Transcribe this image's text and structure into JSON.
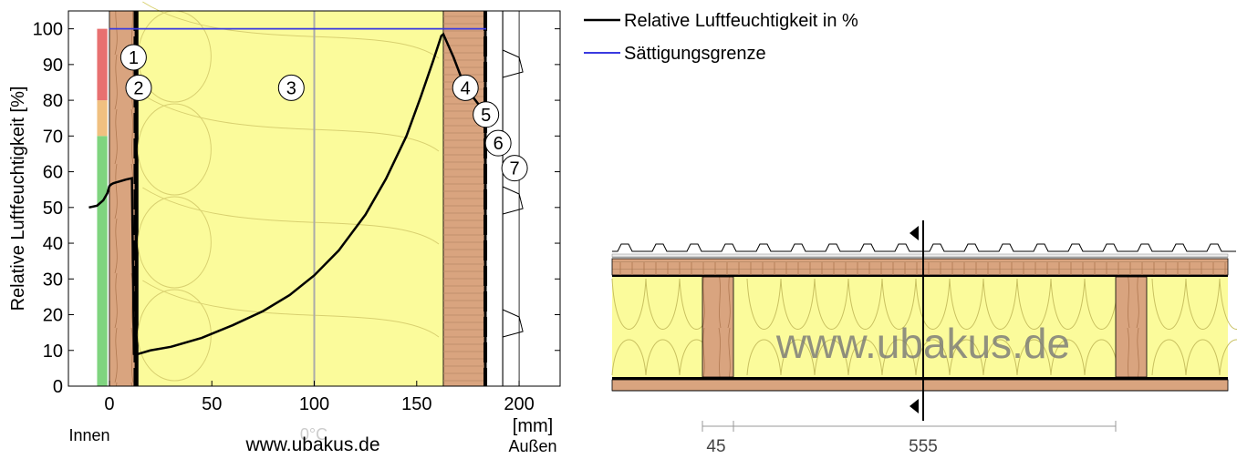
{
  "chart_data": {
    "type": "line",
    "ylabel": "Relative Luftfeuchtigkeit [%]",
    "xlabel": "[mm]",
    "xlim": [
      -20,
      220
    ],
    "ylim": [
      0,
      105
    ],
    "x_ticks": [
      0,
      50,
      100,
      150,
      200
    ],
    "y_ticks": [
      0,
      10,
      20,
      30,
      40,
      50,
      60,
      70,
      80,
      90,
      100
    ],
    "side_inner": "Innen",
    "side_outer": "Außen",
    "temperature_marker": "0°C",
    "watermark": "www.ubakus.de",
    "grid": true,
    "legend": [
      {
        "name": "Relative Luftfeuchtigkeit in %",
        "color": "#000000"
      },
      {
        "name": "Sättigungsgrenze",
        "color": "#3a3ae0"
      }
    ],
    "series": [
      {
        "name": "Relative Luftfeuchtigkeit in %",
        "color": "#000000",
        "x": [
          -10,
          -6,
          -3,
          -1,
          0,
          1,
          2,
          5,
          8,
          11,
          12,
          13,
          14,
          20,
          30,
          45,
          60,
          75,
          88,
          100,
          112,
          125,
          135,
          145,
          152,
          158,
          162,
          163,
          168,
          172,
          176,
          180,
          184
        ],
        "y": [
          50,
          50.5,
          52,
          54,
          56,
          56.5,
          56.8,
          57.3,
          57.8,
          58.2,
          9,
          8.8,
          9,
          10,
          11,
          13.5,
          17,
          21,
          25.5,
          31,
          38,
          48,
          58,
          70,
          81,
          91,
          98,
          98.5,
          92,
          86,
          82,
          79,
          76
        ]
      },
      {
        "name": "Sättigungsgrenze",
        "color": "#3a3ae0",
        "x": [
          0,
          184
        ],
        "y": [
          100,
          100
        ]
      }
    ],
    "humidity_bar": [
      {
        "from": 0,
        "to": 70,
        "color": "#7fd47f"
      },
      {
        "from": 70,
        "to": 80,
        "color": "#f0c080"
      },
      {
        "from": 80,
        "to": 100,
        "color": "#e87070"
      }
    ],
    "layers": [
      {
        "number": "1",
        "from": 0,
        "to": 12.5,
        "material": "wood"
      },
      {
        "number": "2",
        "from": 12.5,
        "to": 14,
        "material": "membrane"
      },
      {
        "number": "3",
        "from": 14,
        "to": 163,
        "material": "insulation"
      },
      {
        "number": "4",
        "from": 163,
        "to": 183,
        "material": "wood-fibre"
      },
      {
        "number": "5",
        "from": 183,
        "to": 184,
        "material": "membrane"
      },
      {
        "number": "6",
        "from": 184,
        "to": 192,
        "material": "air"
      },
      {
        "number": "7",
        "from": 192,
        "to": 200,
        "material": "cladding"
      }
    ]
  },
  "section": {
    "watermark": "www.ubakus.de",
    "dimensions": [
      "45",
      "555"
    ],
    "colors": {
      "wood": "#d9a47f",
      "insulation": "#fbfb9b",
      "board": "#e0b080"
    }
  }
}
